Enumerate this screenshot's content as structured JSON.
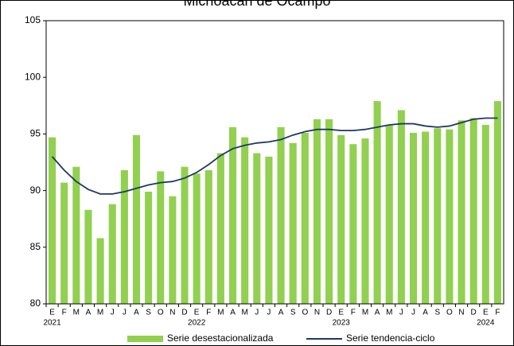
{
  "chart_data": {
    "type": "bar-line",
    "title": "Michoacán de Ocampo",
    "categories": [
      "E",
      "F",
      "M",
      "A",
      "M",
      "J",
      "J",
      "A",
      "S",
      "O",
      "N",
      "D",
      "E",
      "F",
      "M",
      "A",
      "M",
      "J",
      "J",
      "A",
      "S",
      "O",
      "N",
      "D",
      "E",
      "F",
      "M",
      "A",
      "M",
      "J",
      "J",
      "A",
      "S",
      "O",
      "N",
      "D",
      "E",
      "F"
    ],
    "year_labels": [
      "2021",
      null,
      null,
      null,
      null,
      null,
      null,
      null,
      null,
      null,
      null,
      null,
      "2022",
      null,
      null,
      null,
      null,
      null,
      null,
      null,
      null,
      null,
      null,
      null,
      "2023",
      null,
      null,
      null,
      null,
      null,
      null,
      null,
      null,
      null,
      null,
      null,
      "2024",
      null
    ],
    "series": [
      {
        "name": "Serie desestacionalizada",
        "kind": "bar",
        "color": "#92d050",
        "values": [
          94.7,
          90.7,
          92.1,
          88.3,
          85.8,
          88.8,
          91.8,
          94.9,
          89.9,
          91.7,
          89.5,
          92.1,
          91.5,
          91.8,
          93.3,
          95.6,
          94.7,
          93.3,
          93.0,
          95.6,
          94.2,
          95.1,
          96.3,
          96.3,
          94.9,
          94.1,
          94.6,
          97.9,
          95.8,
          97.1,
          95.1,
          95.2,
          95.5,
          95.4,
          96.2,
          96.4,
          95.8,
          97.9
        ]
      },
      {
        "name": "Serie tendencia-ciclo",
        "kind": "line",
        "color": "#1f3864",
        "values": [
          93.0,
          91.8,
          90.8,
          90.1,
          89.7,
          89.7,
          89.9,
          90.2,
          90.5,
          90.7,
          90.8,
          91.1,
          91.6,
          92.3,
          93.1,
          93.7,
          94.0,
          94.2,
          94.3,
          94.5,
          94.9,
          95.2,
          95.4,
          95.4,
          95.3,
          95.3,
          95.4,
          95.6,
          95.8,
          95.9,
          95.9,
          95.7,
          95.6,
          95.7,
          96.0,
          96.3,
          96.4,
          96.4
        ]
      }
    ],
    "ylim": [
      80,
      105
    ],
    "yticks": [
      80,
      85,
      90,
      95,
      100,
      105
    ],
    "grid": false
  }
}
